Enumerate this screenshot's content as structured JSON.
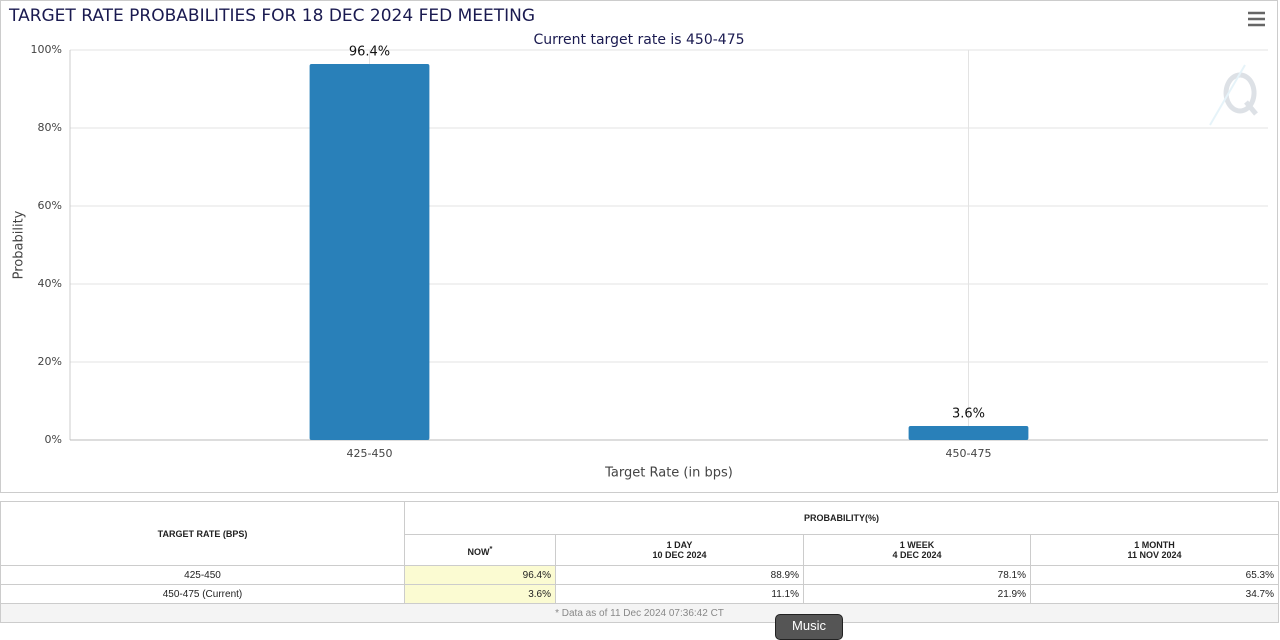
{
  "chart_data": {
    "type": "bar",
    "title": "TARGET RATE PROBABILITIES FOR 18 DEC 2024 FED MEETING",
    "subtitle": "Current target rate is 450-475",
    "x_label": "Target Rate (in bps)",
    "y_label": "Probability",
    "categories": [
      "425-450",
      "450-475"
    ],
    "values": [
      96.4,
      3.6
    ],
    "value_labels": [
      "96.4%",
      "3.6%"
    ],
    "color": "#2980b9",
    "ylim": [
      0,
      100
    ],
    "yticks": [
      {
        "value": 0,
        "label": "0%"
      },
      {
        "value": 20,
        "label": "20%"
      },
      {
        "value": 40,
        "label": "40%"
      },
      {
        "value": 60,
        "label": "60%"
      },
      {
        "value": 80,
        "label": "80%"
      },
      {
        "value": 100,
        "label": "100%"
      }
    ],
    "grid": true
  },
  "table": {
    "row_header": "TARGET RATE (BPS)",
    "group_header": "PROBABILITY(%)",
    "columns": [
      {
        "label": "NOW",
        "note": "*"
      },
      {
        "label": "1 DAY",
        "date": "10 DEC 2024"
      },
      {
        "label": "1 WEEK",
        "date": "4 DEC 2024"
      },
      {
        "label": "1 MONTH",
        "date": "11 NOV 2024"
      }
    ],
    "rows": [
      {
        "target": "425-450",
        "values": [
          "96.4%",
          "88.9%",
          "78.1%",
          "65.3%"
        ]
      },
      {
        "target": "450-475 (Current)",
        "values": [
          "3.6%",
          "11.1%",
          "21.9%",
          "34.7%"
        ]
      }
    ],
    "footnote": "* Data as of 11 Dec 2024 07:36:42 CT"
  },
  "overlay_button": "Music"
}
